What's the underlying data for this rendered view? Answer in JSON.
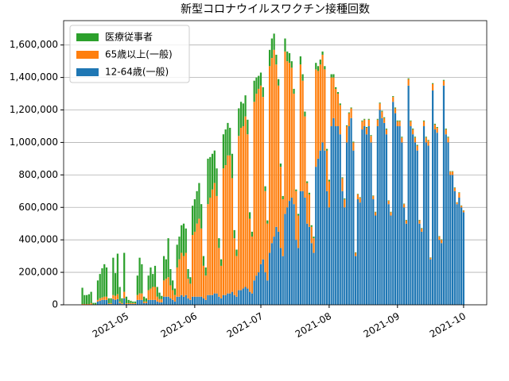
{
  "chart_data": {
    "type": "stacked_bar",
    "title": "新型コロナウイルスワクチン接種回数",
    "x": [
      -20,
      -19,
      -18,
      -17,
      -16,
      -15,
      -14,
      -13,
      -12,
      -11,
      -10,
      -9,
      -8,
      -7,
      -6,
      -5,
      -4,
      -3,
      -2,
      -1,
      0,
      1,
      2,
      3,
      4,
      5,
      6,
      7,
      8,
      9,
      10,
      11,
      12,
      13,
      14,
      15,
      16,
      17,
      18,
      19,
      20,
      21,
      22,
      23,
      24,
      25,
      26,
      27,
      28,
      29,
      30,
      31,
      32,
      33,
      34,
      35,
      36,
      37,
      38,
      39,
      40,
      41,
      42,
      43,
      44,
      45,
      46,
      47,
      48,
      49,
      50,
      51,
      52,
      53,
      54,
      55,
      56,
      57,
      58,
      59,
      60,
      61,
      62,
      63,
      64,
      65,
      66,
      67,
      68,
      69,
      70,
      71,
      72,
      73,
      74,
      75,
      76,
      77,
      78,
      79,
      80,
      81,
      82,
      83,
      84,
      85,
      86,
      87,
      88,
      89,
      90,
      91,
      92,
      93,
      94,
      95,
      96,
      97,
      98,
      99,
      100,
      101,
      102,
      103,
      104,
      105,
      106,
      107,
      108,
      109,
      110,
      111,
      112,
      113,
      114,
      115,
      116,
      117,
      118,
      119,
      120,
      121,
      122,
      123,
      124,
      125,
      126,
      127,
      128,
      129,
      130,
      131,
      132,
      133,
      134,
      135,
      136,
      137,
      138,
      139,
      140,
      141,
      142,
      143,
      144,
      145,
      146,
      147,
      148,
      149,
      150,
      151,
      152,
      153
    ],
    "series": [
      {
        "name": "医療従事者",
        "color": "#2ca02c",
        "values": [
          100000,
          55000,
          55000,
          60000,
          70000,
          10000,
          10000,
          120000,
          150000,
          180000,
          200000,
          180000,
          30000,
          30000,
          230000,
          140000,
          250000,
          90000,
          30000,
          240000,
          40000,
          20000,
          15000,
          10000,
          10000,
          120000,
          220000,
          180000,
          30000,
          20000,
          90000,
          130000,
          80000,
          130000,
          60000,
          40000,
          20000,
          150000,
          120000,
          240000,
          100000,
          60000,
          40000,
          140000,
          140000,
          170000,
          200000,
          150000,
          60000,
          40000,
          180000,
          200000,
          200000,
          220000,
          150000,
          60000,
          50000,
          280000,
          250000,
          220000,
          200000,
          170000,
          60000,
          40000,
          210000,
          220000,
          200000,
          170000,
          150000,
          50000,
          40000,
          170000,
          160000,
          140000,
          130000,
          90000,
          40000,
          30000,
          130000,
          100000,
          80000,
          80000,
          60000,
          30000,
          20000,
          100000,
          120000,
          100000,
          60000,
          40000,
          20000,
          20000,
          80000,
          60000,
          60000,
          40000,
          30000,
          10000,
          10000,
          50000,
          40000,
          30000,
          10000,
          10000,
          10000,
          10000,
          40000,
          30000,
          30000,
          20000,
          20000,
          10000,
          10000,
          20000,
          20000,
          10000,
          10000,
          10000,
          5000,
          5000,
          5000,
          5000,
          5000,
          5000,
          3000,
          3000,
          3000,
          5000,
          5000,
          5000,
          5000,
          5000,
          3000,
          3000,
          5000,
          5000,
          5000,
          5000,
          5000,
          3000,
          3000,
          5000,
          5000,
          5000,
          5000,
          5000,
          3000,
          3000,
          5000,
          5000,
          5000,
          5000,
          5000,
          3000,
          3000,
          5000,
          5000,
          5000,
          2000,
          5000,
          5000,
          5000,
          3000,
          3000,
          5000,
          5000,
          5000,
          3000,
          3000,
          3000,
          2000,
          3000,
          2000,
          2000
        ]
      },
      {
        "name": "65歳以上(一般)",
        "color": "#ff7f0e",
        "values": [
          5000,
          5000,
          5000,
          5000,
          10000,
          2000,
          2000,
          10000,
          15000,
          15000,
          20000,
          20000,
          5000,
          5000,
          25000,
          25000,
          30000,
          10000,
          5000,
          40000,
          5000,
          5000,
          5000,
          5000,
          5000,
          30000,
          40000,
          40000,
          10000,
          10000,
          60000,
          70000,
          80000,
          80000,
          30000,
          20000,
          20000,
          100000,
          110000,
          120000,
          80000,
          60000,
          40000,
          180000,
          230000,
          260000,
          250000,
          260000,
          120000,
          100000,
          380000,
          400000,
          450000,
          480000,
          420000,
          200000,
          150000,
          560000,
          600000,
          650000,
          680000,
          600000,
          300000,
          200000,
          780000,
          800000,
          850000,
          850000,
          700000,
          350000,
          250000,
          950000,
          1000000,
          1000000,
          1050000,
          950000,
          450000,
          350000,
          1100000,
          1120000,
          1130000,
          1100000,
          1000000,
          500000,
          350000,
          1150000,
          1140000,
          1150000,
          1000000,
          900000,
          500000,
          350000,
          1000000,
          900000,
          850000,
          800000,
          680000,
          300000,
          200000,
          780000,
          680000,
          500000,
          250000,
          200000,
          100000,
          90000,
          600000,
          540000,
          530000,
          540000,
          500000,
          250000,
          160000,
          300000,
          250000,
          230000,
          200000,
          180000,
          80000,
          50000,
          100000,
          80000,
          60000,
          50000,
          20000,
          30000,
          30000,
          50000,
          40000,
          40000,
          40000,
          40000,
          20000,
          20000,
          40000,
          40000,
          40000,
          30000,
          30000,
          20000,
          20000,
          30000,
          30000,
          30000,
          30000,
          30000,
          20000,
          20000,
          40000,
          30000,
          30000,
          30000,
          30000,
          20000,
          20000,
          30000,
          30000,
          30000,
          10000,
          40000,
          30000,
          30000,
          20000,
          20000,
          30000,
          30000,
          30000,
          20000,
          20000,
          20000,
          10000,
          30000,
          10000,
          10000
        ]
      },
      {
        "name": "12-64歳(一般)",
        "color": "#1f77b4",
        "values": [
          0,
          0,
          0,
          0,
          0,
          0,
          0,
          20000,
          25000,
          30000,
          30000,
          30000,
          5000,
          5000,
          35000,
          30000,
          35000,
          10000,
          5000,
          40000,
          5000,
          5000,
          5000,
          5000,
          5000,
          30000,
          30000,
          30000,
          10000,
          10000,
          30000,
          30000,
          30000,
          30000,
          20000,
          15000,
          15000,
          50000,
          50000,
          50000,
          40000,
          30000,
          20000,
          50000,
          50000,
          60000,
          50000,
          60000,
          40000,
          30000,
          50000,
          50000,
          50000,
          50000,
          50000,
          40000,
          30000,
          60000,
          60000,
          60000,
          70000,
          70000,
          50000,
          40000,
          60000,
          60000,
          70000,
          70000,
          80000,
          60000,
          50000,
          90000,
          90000,
          100000,
          110000,
          100000,
          80000,
          70000,
          150000,
          180000,
          200000,
          250000,
          280000,
          200000,
          150000,
          320000,
          380000,
          420000,
          480000,
          450000,
          350000,
          300000,
          560000,
          600000,
          640000,
          660000,
          620000,
          400000,
          350000,
          700000,
          700000,
          660000,
          500000,
          480000,
          380000,
          320000,
          850000,
          900000,
          950000,
          1000000,
          950000,
          700000,
          600000,
          1100000,
          1150000,
          1100000,
          1100000,
          1050000,
          700000,
          600000,
          1000000,
          1100000,
          1150000,
          950000,
          300000,
          650000,
          630000,
          1080000,
          1100000,
          1050000,
          1100000,
          1000000,
          650000,
          550000,
          1100000,
          1200000,
          1150000,
          1120000,
          1050000,
          620000,
          550000,
          1250000,
          1180000,
          1100000,
          1100000,
          1000000,
          600000,
          500000,
          1350000,
          1100000,
          1050000,
          1000000,
          950000,
          500000,
          450000,
          1100000,
          1000000,
          980000,
          280000,
          1320000,
          1080000,
          1060000,
          400000,
          380000,
          1350000,
          1050000,
          1000000,
          800000,
          800000,
          700000,
          620000,
          660000,
          600000,
          570000
        ]
      }
    ],
    "xlim": [
      -28.5,
      163.5
    ],
    "xticks": [
      {
        "value": 0,
        "label": "2021-05"
      },
      {
        "value": 31,
        "label": "2021-06"
      },
      {
        "value": 61,
        "label": "2021-07"
      },
      {
        "value": 92,
        "label": "2021-08"
      },
      {
        "value": 123,
        "label": "2021-09"
      },
      {
        "value": 153,
        "label": "2021-10"
      }
    ],
    "ylim": [
      0,
      1750000
    ],
    "yticks": [
      0,
      {
        "value": 200000,
        "label": "200,000"
      },
      {
        "value": 400000,
        "label": "400,000"
      },
      {
        "value": 600000,
        "label": "600,000"
      },
      {
        "value": 800000,
        "label": "800,000"
      },
      {
        "value": 1000000,
        "label": "1,000,000"
      },
      {
        "value": 1200000,
        "label": "1,200,000"
      },
      {
        "value": 1400000,
        "label": "1,400,000"
      },
      {
        "value": 1600000,
        "label": "1,600,000"
      }
    ],
    "grid": true,
    "legend": "upper-left"
  }
}
